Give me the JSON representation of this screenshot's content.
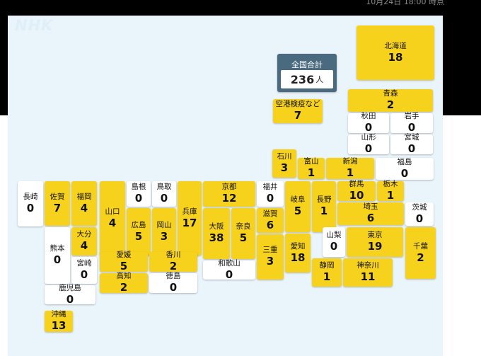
{
  "timestamp": "10月24日 18:00 時点",
  "logo": "NHK",
  "total": {
    "label": "全国合計",
    "count": "236",
    "unit": "人"
  },
  "prefectures": [
    {
      "id": "hokkaido",
      "name": "北海道",
      "count": "18",
      "color": "yellow"
    },
    {
      "id": "kuko",
      "name": "空港検疫など",
      "count": "7",
      "color": "yellow"
    },
    {
      "id": "aomori",
      "name": "青森",
      "count": "2",
      "color": "yellow"
    },
    {
      "id": "akita",
      "name": "秋田",
      "count": "0",
      "color": "white"
    },
    {
      "id": "iwate",
      "name": "岩手",
      "count": "0",
      "color": "white"
    },
    {
      "id": "yamagata",
      "name": "山形",
      "count": "0",
      "color": "white"
    },
    {
      "id": "miyagi",
      "name": "宮城",
      "count": "0",
      "color": "white"
    },
    {
      "id": "ishikawa",
      "name": "石川",
      "count": "3",
      "color": "yellow"
    },
    {
      "id": "toyama",
      "name": "富山",
      "count": "1",
      "color": "yellow"
    },
    {
      "id": "niigata",
      "name": "新潟",
      "count": "1",
      "color": "yellow"
    },
    {
      "id": "fukushima",
      "name": "福島",
      "count": "0",
      "color": "white"
    },
    {
      "id": "nagasaki",
      "name": "長崎",
      "count": "0",
      "color": "white"
    },
    {
      "id": "saga",
      "name": "佐賀",
      "count": "7",
      "color": "yellow"
    },
    {
      "id": "fukuoka",
      "name": "福岡",
      "count": "4",
      "color": "yellow"
    },
    {
      "id": "yamaguchi",
      "name": "山口",
      "count": "4",
      "color": "yellow"
    },
    {
      "id": "shimane",
      "name": "島根",
      "count": "0",
      "color": "white"
    },
    {
      "id": "tottori",
      "name": "鳥取",
      "count": "0",
      "color": "white"
    },
    {
      "id": "hyogo",
      "name": "兵庫",
      "count": "17",
      "color": "yellow"
    },
    {
      "id": "kyoto",
      "name": "京都",
      "count": "12",
      "color": "yellow"
    },
    {
      "id": "fukui",
      "name": "福井",
      "count": "0",
      "color": "white"
    },
    {
      "id": "gifu",
      "name": "岐阜",
      "count": "5",
      "color": "yellow"
    },
    {
      "id": "nagano",
      "name": "長野",
      "count": "1",
      "color": "yellow"
    },
    {
      "id": "gunma",
      "name": "群馬",
      "count": "10",
      "color": "yellow"
    },
    {
      "id": "tochigi",
      "name": "栃木",
      "count": "1",
      "color": "yellow"
    },
    {
      "id": "hiroshima",
      "name": "広島",
      "count": "5",
      "color": "yellow"
    },
    {
      "id": "okayama",
      "name": "岡山",
      "count": "3",
      "color": "yellow"
    },
    {
      "id": "oita",
      "name": "大分",
      "count": "4",
      "color": "yellow"
    },
    {
      "id": "osaka",
      "name": "大阪",
      "count": "38",
      "color": "yellow"
    },
    {
      "id": "shiga",
      "name": "滋賀",
      "count": "6",
      "color": "yellow"
    },
    {
      "id": "saitama",
      "name": "埼玉",
      "count": "6",
      "color": "yellow"
    },
    {
      "id": "ibaraki",
      "name": "茨城",
      "count": "0",
      "color": "white"
    },
    {
      "id": "kumamoto",
      "name": "熊本",
      "count": "0",
      "color": "white"
    },
    {
      "id": "miyazaki",
      "name": "宮崎",
      "count": "0",
      "color": "white"
    },
    {
      "id": "nara",
      "name": "奈良",
      "count": "5",
      "color": "yellow"
    },
    {
      "id": "yamanashi",
      "name": "山梨",
      "count": "0",
      "color": "white"
    },
    {
      "id": "tokyo",
      "name": "東京",
      "count": "19",
      "color": "yellow"
    },
    {
      "id": "chiba",
      "name": "千葉",
      "count": "2",
      "color": "yellow"
    },
    {
      "id": "aichi",
      "name": "愛知",
      "count": "18",
      "color": "yellow"
    },
    {
      "id": "mie",
      "name": "三重",
      "count": "3",
      "color": "yellow"
    },
    {
      "id": "ehime",
      "name": "愛媛",
      "count": "5",
      "color": "yellow"
    },
    {
      "id": "kagawa",
      "name": "香川",
      "count": "2",
      "color": "yellow"
    },
    {
      "id": "wakayama",
      "name": "和歌山",
      "count": "0",
      "color": "white"
    },
    {
      "id": "shizuoka",
      "name": "静岡",
      "count": "1",
      "color": "yellow"
    },
    {
      "id": "kanagawa",
      "name": "神奈川",
      "count": "11",
      "color": "yellow"
    },
    {
      "id": "kochi",
      "name": "高知",
      "count": "2",
      "color": "yellow"
    },
    {
      "id": "tokushima",
      "name": "徳島",
      "count": "0",
      "color": "white"
    },
    {
      "id": "kagoshima",
      "name": "鹿児島",
      "count": "0",
      "color": "white"
    },
    {
      "id": "okinawa",
      "name": "沖縄",
      "count": "13",
      "color": "yellow"
    }
  ]
}
